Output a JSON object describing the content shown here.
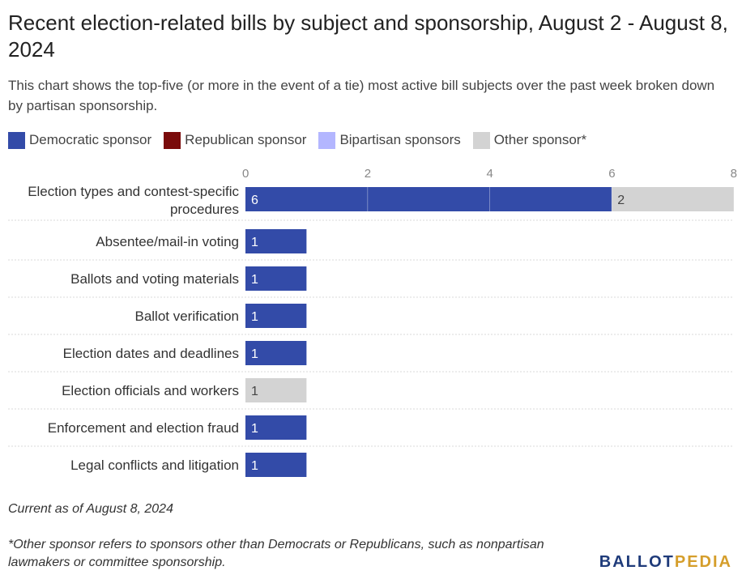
{
  "header": {
    "title": "Recent election-related bills by subject and sponsorship, August 2 - August 8, 2024",
    "subtitle": "This chart shows the top-five (or more in the event of a tie) most active bill subjects over the past week broken down by partisan sponsorship."
  },
  "legend": [
    {
      "label": "Democratic sponsor",
      "color": "#334ba8"
    },
    {
      "label": "Republican sponsor",
      "color": "#7a0b0b"
    },
    {
      "label": "Bipartisan sponsors",
      "color": "#b3b6ff"
    },
    {
      "label": "Other sponsor*",
      "color": "#d3d3d3"
    }
  ],
  "chart_data": {
    "type": "bar",
    "orientation": "horizontal",
    "stacked": true,
    "categories": [
      "Election types and contest-specific procedures",
      "Absentee/mail-in voting",
      "Ballots and voting materials",
      "Ballot verification",
      "Election dates and deadlines",
      "Election officials and workers",
      "Enforcement and election fraud",
      "Legal conflicts and litigation"
    ],
    "series": [
      {
        "name": "Democratic sponsor",
        "color": "#334ba8",
        "values": [
          6,
          1,
          1,
          1,
          1,
          0,
          1,
          1
        ]
      },
      {
        "name": "Republican sponsor",
        "color": "#7a0b0b",
        "values": [
          0,
          0,
          0,
          0,
          0,
          0,
          0,
          0
        ]
      },
      {
        "name": "Bipartisan sponsors",
        "color": "#b3b6ff",
        "values": [
          0,
          0,
          0,
          0,
          0,
          0,
          0,
          0
        ]
      },
      {
        "name": "Other sponsor*",
        "color": "#d3d3d3",
        "values": [
          2,
          0,
          0,
          0,
          0,
          1,
          0,
          0
        ]
      }
    ],
    "x_ticks": [
      0,
      2,
      4,
      6,
      8
    ],
    "xlim": [
      0,
      8
    ],
    "grid": true,
    "legend_position": "top"
  },
  "footer": {
    "current_as_of": "Current as of August 8, 2024",
    "note": "*Other sponsor refers to sponsors other than Democrats or Republicans, such as nonpartisan lawmakers or committee sponsorship.",
    "logo_part1": "BALLOT",
    "logo_part2": "PEDIA"
  }
}
